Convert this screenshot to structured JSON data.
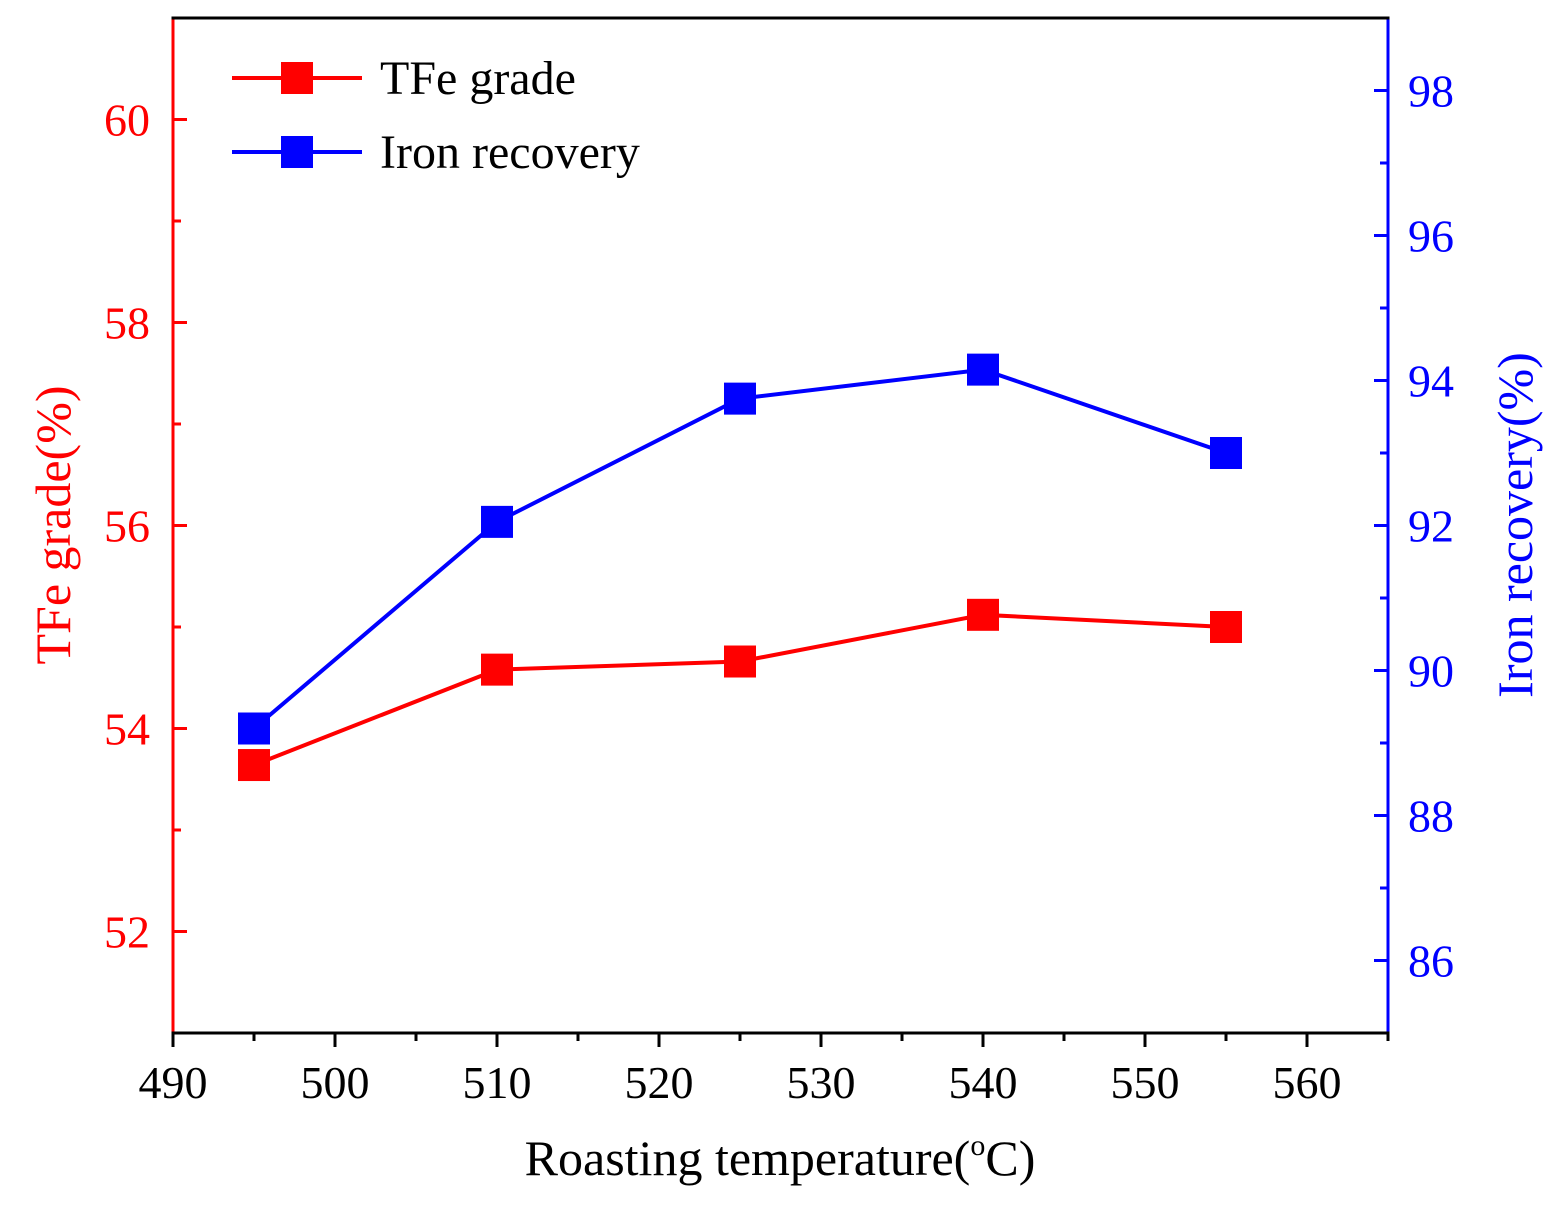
{
  "chart_data": {
    "type": "line",
    "x_axis": {
      "label": "Roasting temperature(",
      "label_degree": "o",
      "label_unit": "C)",
      "range": [
        490,
        565
      ],
      "ticks": [
        490,
        500,
        510,
        520,
        530,
        540,
        550,
        560
      ],
      "tick_labels": [
        "490",
        "500",
        "510",
        "520",
        "530",
        "540",
        "550",
        "560"
      ],
      "minor_step": 5
    },
    "y_left": {
      "label": "TFe grade(%)",
      "color": "#ff0000",
      "range": [
        51,
        61
      ],
      "ticks": [
        52,
        54,
        56,
        58,
        60
      ],
      "tick_labels": [
        "52",
        "54",
        "56",
        "58",
        "60"
      ],
      "minor_step": 1
    },
    "y_right": {
      "label": "Iron recovery(%)",
      "color": "#0000ff",
      "range": [
        85,
        99
      ],
      "ticks": [
        86,
        88,
        90,
        92,
        94,
        96,
        98
      ],
      "tick_labels": [
        "86",
        "88",
        "90",
        "92",
        "94",
        "96",
        "98"
      ],
      "minor_step": 1
    },
    "x": [
      495,
      510,
      525,
      540,
      555
    ],
    "series": [
      {
        "name": "TFe grade",
        "axis": "left",
        "color": "#ff0000",
        "values": [
          53.64,
          54.58,
          54.66,
          55.12,
          55.0
        ]
      },
      {
        "name": "Iron recovery",
        "axis": "right",
        "color": "#0000ff",
        "values": [
          89.2,
          92.05,
          93.75,
          94.15,
          93.0
        ]
      }
    ],
    "legend": {
      "position": "top-left"
    },
    "grid": false
  }
}
